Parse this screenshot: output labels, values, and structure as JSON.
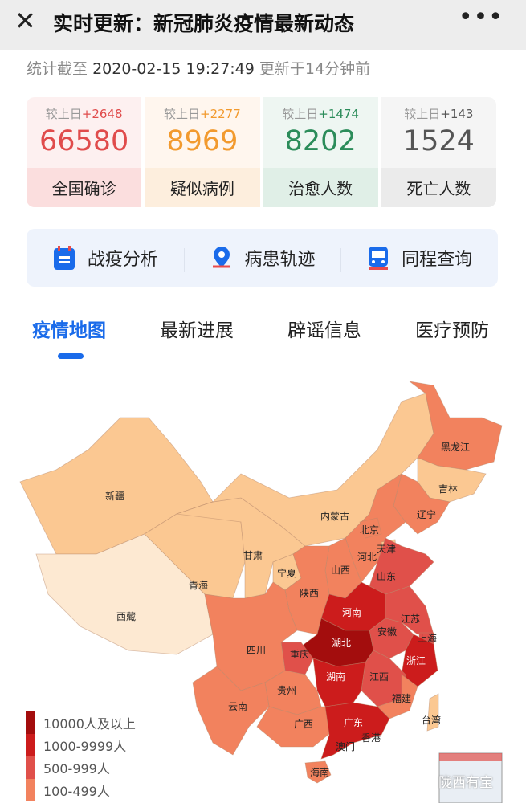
{
  "header": {
    "close_icon": "close-icon",
    "title": "实时更新：新冠肺炎疫情最新动态",
    "more_icon": "more-dots-icon"
  },
  "stamp": {
    "prefix": "统计截至",
    "datetime": "2020-02-15 19:27:49",
    "updated": "更新于14分钟前"
  },
  "stats": [
    {
      "delta_label": "较上日",
      "delta": "+2648",
      "value": "66580",
      "label": "全国确诊",
      "color": "#e04b4b",
      "bg": "#fdf0f0",
      "label_bg": "#fbdede"
    },
    {
      "delta_label": "较上日",
      "delta": "+2277",
      "value": "8969",
      "label": "疑似病例",
      "color": "#f29a2e",
      "bg": "#fff6ee",
      "label_bg": "#fdeedd"
    },
    {
      "delta_label": "较上日",
      "delta": "+1474",
      "value": "8202",
      "label": "治愈人数",
      "color": "#2b8c5a",
      "bg": "#eef6f2",
      "label_bg": "#e0efe7"
    },
    {
      "delta_label": "较上日",
      "delta": "+143",
      "value": "1524",
      "label": "死亡人数",
      "color": "#555555",
      "bg": "#f5f5f5",
      "label_bg": "#ebebeb"
    }
  ],
  "quick": [
    {
      "label": "战疫分析",
      "icon": "calendar-icon"
    },
    {
      "label": "病患轨迹",
      "icon": "location-pin-icon"
    },
    {
      "label": "同程查询",
      "icon": "train-icon"
    }
  ],
  "tabs": [
    {
      "label": "疫情地图",
      "active": true
    },
    {
      "label": "最新进展"
    },
    {
      "label": "辟谣信息"
    },
    {
      "label": "医疗预防"
    }
  ],
  "legend": [
    {
      "label": "10000人及以上",
      "color": "#a30d0d"
    },
    {
      "label": "1000-9999人",
      "color": "#cc1c1c"
    },
    {
      "label": "500-999人",
      "color": "#e0504a"
    },
    {
      "label": "100-499人",
      "color": "#f2825e"
    }
  ],
  "map_colors": {
    "c4": "#a30d0d",
    "c3": "#cc1c1c",
    "c2": "#e0504a",
    "c1": "#f2825e",
    "c0": "#fbc892",
    "cl": "#fde9d2"
  },
  "provinces": {
    "xinjiang": "新疆",
    "xizang": "西藏",
    "qinghai": "青海",
    "gansu": "甘肃",
    "neimenggu": "内蒙古",
    "heilongjiang": "黑龙江",
    "jilin": "吉林",
    "liaoning": "辽宁",
    "beijing": "北京",
    "tianjin": "天津",
    "hebei": "河北",
    "shanxi": "山西",
    "ningxia": "宁夏",
    "shaanxi": "陕西",
    "shandong": "山东",
    "henan": "河南",
    "jiangsu": "江苏",
    "anhui": "安徽",
    "shanghai": "上海",
    "hubei": "湖北",
    "chongqing": "重庆",
    "sichuan": "四川",
    "zhejiang": "浙江",
    "hunan": "湖南",
    "jiangxi": "江西",
    "guizhou": "贵州",
    "fujian": "福建",
    "yunnan": "云南",
    "guangxi": "广西",
    "guangdong": "广东",
    "taiwan": "台湾",
    "xianggang": "香港",
    "aomen": "澳门",
    "hainan": "海南"
  },
  "watermark": "陇西有宝"
}
